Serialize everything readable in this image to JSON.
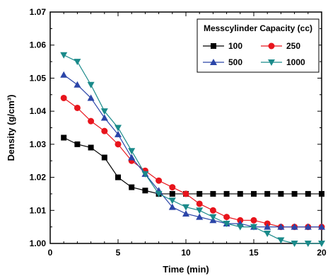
{
  "chart_data": {
    "type": "line",
    "title": "",
    "xlabel": "Time (min)",
    "ylabel": "Density (g/cm³)",
    "xlim": [
      0,
      20
    ],
    "ylim": [
      1.0,
      1.07
    ],
    "xticks": [
      "0",
      "5",
      "10",
      "15",
      "20"
    ],
    "yticks": [
      "1.00",
      "1.01",
      "1.02",
      "1.03",
      "1.04",
      "1.05",
      "1.06",
      "1.07"
    ],
    "grid": false,
    "legend": {
      "title": "Messcylinder Capacity (cc)",
      "position": "top-right"
    },
    "x": [
      1,
      2,
      3,
      4,
      5,
      6,
      7,
      8,
      9,
      10,
      11,
      12,
      13,
      14,
      15,
      16,
      17,
      18,
      19,
      20
    ],
    "series": [
      {
        "name": "100",
        "color": "#000000",
        "marker": "square",
        "values": [
          1.032,
          1.03,
          1.029,
          1.026,
          1.02,
          1.017,
          1.016,
          1.015,
          1.015,
          1.015,
          1.015,
          1.015,
          1.015,
          1.015,
          1.015,
          1.015,
          1.015,
          1.015,
          1.015,
          1.015
        ]
      },
      {
        "name": "250",
        "color": "#e8141c",
        "marker": "circle",
        "values": [
          1.044,
          1.041,
          1.037,
          1.034,
          1.03,
          1.025,
          1.022,
          1.019,
          1.017,
          1.015,
          1.012,
          1.01,
          1.008,
          1.007,
          1.007,
          1.006,
          1.005,
          1.005,
          1.005,
          1.005
        ]
      },
      {
        "name": "500",
        "color": "#2b45a8",
        "marker": "triangle-up",
        "values": [
          1.051,
          1.048,
          1.044,
          1.038,
          1.033,
          1.026,
          1.021,
          1.016,
          1.011,
          1.009,
          1.008,
          1.007,
          1.006,
          1.006,
          1.005,
          1.005,
          1.005,
          1.005,
          1.005,
          1.005
        ]
      },
      {
        "name": "1000",
        "color": "#1a8a8a",
        "marker": "triangle-down",
        "values": [
          1.057,
          1.055,
          1.048,
          1.04,
          1.035,
          1.028,
          1.021,
          1.015,
          1.013,
          1.011,
          1.01,
          1.008,
          1.006,
          1.005,
          1.005,
          1.003,
          1.001,
          1.0,
          1.0,
          1.0
        ]
      }
    ]
  }
}
